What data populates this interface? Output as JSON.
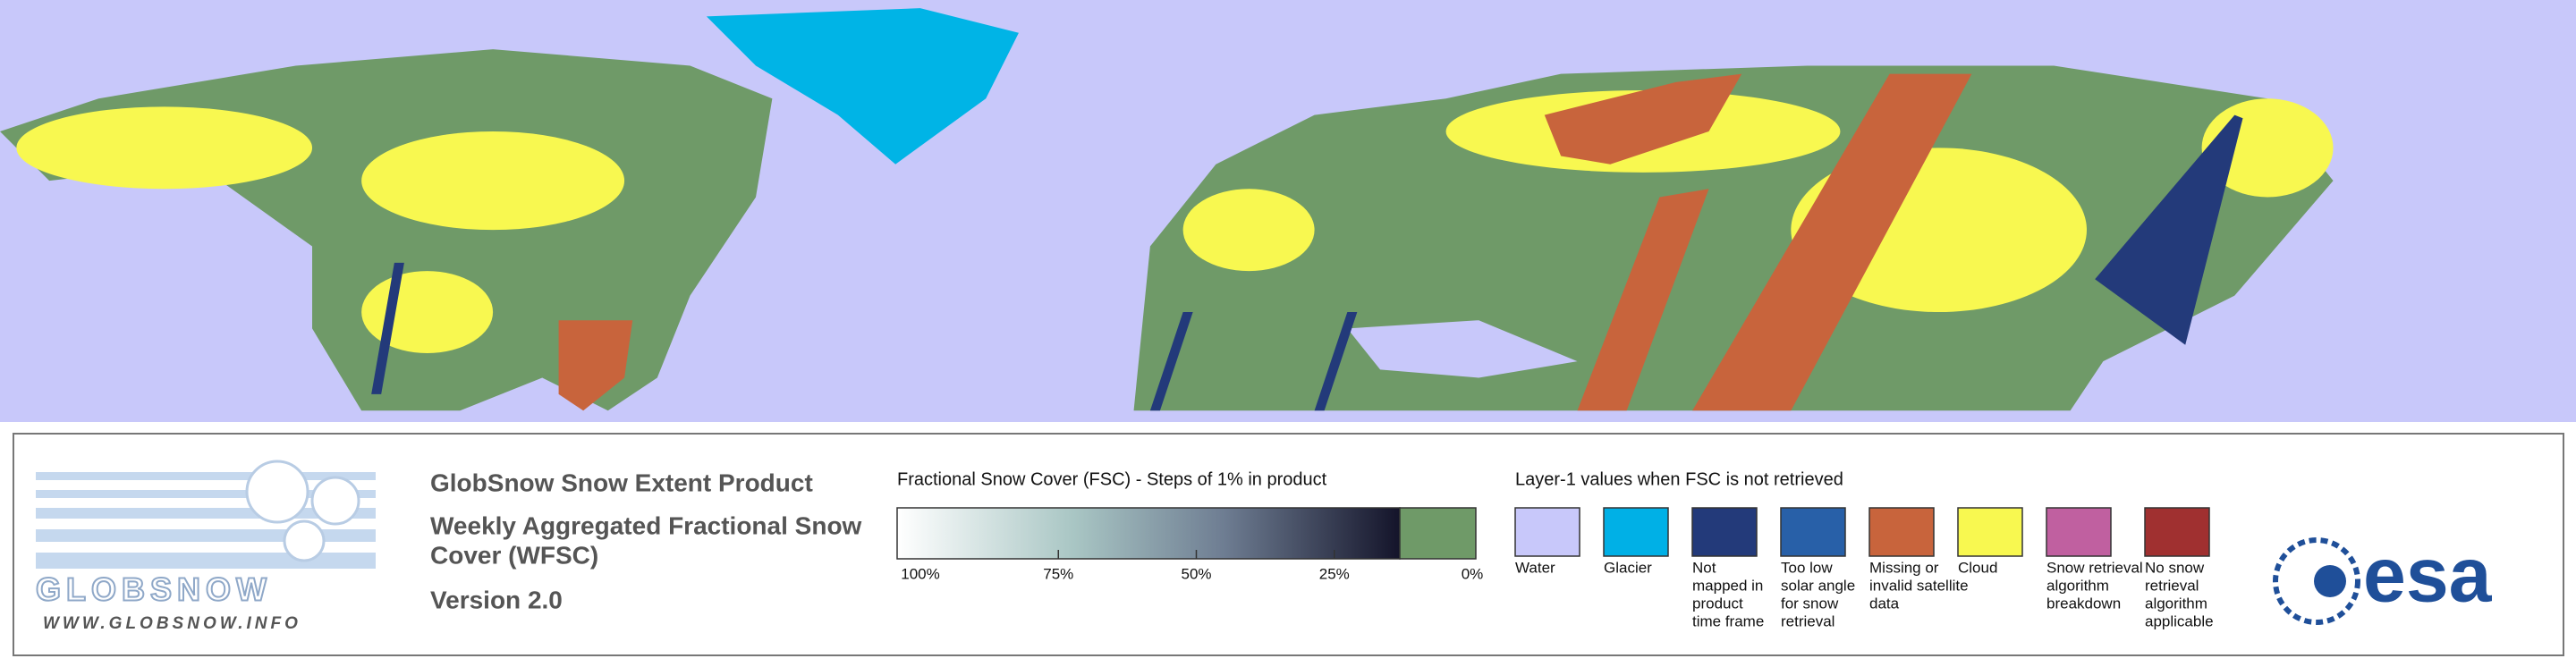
{
  "header": {
    "logo_text": "GLOBSNOW",
    "url": "WWW.GLOBSNOW.INFO"
  },
  "product": {
    "title": "GlobSnow Snow Extent Product",
    "subtitle_lines": [
      "Weekly Aggregated Fractional Snow",
      "Cover (WFSC)"
    ],
    "version": "Version 2.0"
  },
  "fsc_legend": {
    "title": "Fractional Snow Cover (FSC) - Steps of 1% in product",
    "labels": [
      "100%",
      "75%",
      "50%",
      "25%",
      "0%"
    ]
  },
  "layer1_legend": {
    "title": "Layer-1 values when FSC is not retrieved",
    "items": [
      {
        "label_lines": [
          "Water"
        ],
        "color": "#c8c8fa"
      },
      {
        "label_lines": [
          "Glacier"
        ],
        "color": "#00b0e6"
      },
      {
        "label_lines": [
          "Not",
          "mapped in",
          "product",
          "time frame"
        ],
        "color": "#233a7a"
      },
      {
        "label_lines": [
          "Too low",
          "solar angle",
          "for snow",
          "retrieval"
        ],
        "color": "#2860a8"
      },
      {
        "label_lines": [
          "Missing or",
          "invalid satellite",
          "data"
        ],
        "color": "#c8643c"
      },
      {
        "label_lines": [
          "Cloud"
        ],
        "color": "#f8f850"
      },
      {
        "label_lines": [
          "Snow retrieval",
          "algorithm",
          "breakdown"
        ],
        "color": "#c060a0"
      },
      {
        "label_lines": [
          "No snow",
          "retrieval",
          "algorithm",
          "applicable"
        ],
        "color": "#a03030"
      }
    ]
  },
  "agency": "esa"
}
